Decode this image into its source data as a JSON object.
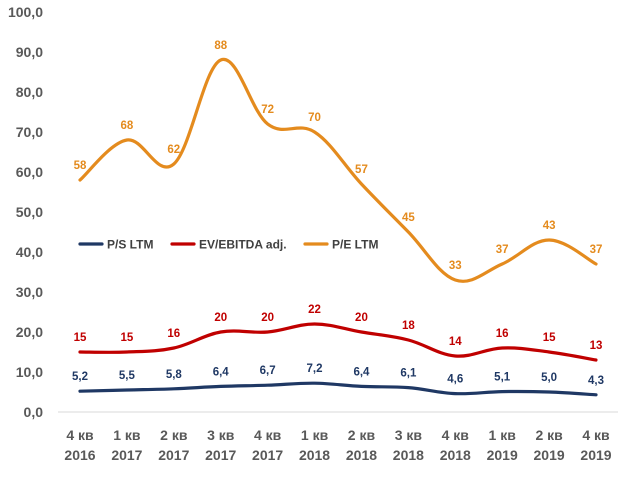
{
  "chart_data": {
    "type": "line",
    "categories": [
      [
        "4 кв",
        "2016"
      ],
      [
        "1 кв",
        "2017"
      ],
      [
        "2 кв",
        "2017"
      ],
      [
        "3 кв",
        "2017"
      ],
      [
        "4 кв",
        "2017"
      ],
      [
        "1 кв",
        "2018"
      ],
      [
        "2 кв",
        "2018"
      ],
      [
        "3 кв",
        "2018"
      ],
      [
        "4 кв",
        "2018"
      ],
      [
        "1 кв",
        "2019"
      ],
      [
        "2 кв",
        "2019"
      ],
      [
        "4 кв",
        "2019"
      ]
    ],
    "ylim": [
      0,
      100
    ],
    "yticks": [
      "0,0",
      "10,0",
      "20,0",
      "30,0",
      "40,0",
      "50,0",
      "60,0",
      "70,0",
      "80,0",
      "90,0",
      "100,0"
    ],
    "grid": false,
    "legend_position": "middle-left",
    "series": [
      {
        "name": "P/S LTM",
        "color": "#1f3864",
        "values": [
          5.2,
          5.5,
          5.8,
          6.4,
          6.7,
          7.2,
          6.4,
          6.1,
          4.6,
          5.1,
          5.0,
          4.3
        ],
        "labels": [
          "5,2",
          "5,5",
          "5,8",
          "6,4",
          "6,7",
          "7,2",
          "6,4",
          "6,1",
          "4,6",
          "5,1",
          "5,0",
          "4,3"
        ]
      },
      {
        "name": "EV/EBITDA adj.",
        "color": "#c00000",
        "values": [
          15,
          15,
          16,
          20,
          20,
          22,
          20,
          18,
          14,
          16,
          15,
          13
        ],
        "labels": [
          "15",
          "15",
          "16",
          "20",
          "20",
          "22",
          "20",
          "18",
          "14",
          "16",
          "15",
          "13"
        ]
      },
      {
        "name": "P/E LTM",
        "color": "#e48b1e",
        "values": [
          58,
          68,
          62,
          88,
          72,
          70,
          57,
          45,
          33,
          37,
          43,
          37
        ],
        "labels": [
          "58",
          "68",
          "62",
          "88",
          "72",
          "70",
          "57",
          "45",
          "33",
          "37",
          "43",
          "37"
        ]
      }
    ]
  }
}
